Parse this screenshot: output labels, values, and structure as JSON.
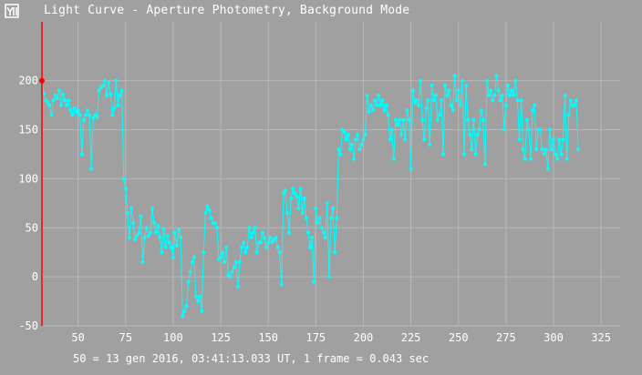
{
  "window": {
    "title": "Light Curve - Aperture Photometry, Background Mode",
    "icon": "app-icon"
  },
  "footer": {
    "caption": "50 = 13 gen 2016, 03:41:13.033 UT, 1 frame = 0.043 sec"
  },
  "colors": {
    "background": "#a0a0a0",
    "grid": "#b8b8b8",
    "series": "#00ffff",
    "y_axis": "#ff0000",
    "text": "#ffffff"
  },
  "chart_data": {
    "type": "line",
    "title": "",
    "xlabel": "",
    "ylabel": "",
    "xlim": [
      31,
      335
    ],
    "ylim": [
      -50,
      260
    ],
    "grid": true,
    "x_ticks": [
      50,
      75,
      100,
      125,
      150,
      175,
      200,
      225,
      250,
      275,
      300,
      325
    ],
    "y_ticks": [
      -50,
      0,
      50,
      100,
      150,
      200
    ],
    "x_tick_labels": [
      "50",
      "75",
      "100",
      "125",
      "150",
      "175",
      "200",
      "225",
      "250",
      "275",
      "300",
      "325"
    ],
    "y_tick_labels": [
      "-50",
      "0",
      "50",
      "100",
      "150",
      "200"
    ],
    "marker_on_axis": {
      "y": 200
    },
    "series": [
      {
        "x_start": 31,
        "x_step": 1,
        "values": [
          200,
          187,
          180,
          178,
          175,
          165,
          180,
          185,
          182,
          190,
          175,
          186,
          180,
          175,
          180,
          170,
          165,
          172,
          168,
          170,
          165,
          125,
          160,
          165,
          170,
          165,
          110,
          162,
          165,
          163,
          190,
          193,
          195,
          200,
          185,
          198,
          186,
          165,
          172,
          200,
          175,
          185,
          190,
          100,
          90,
          65,
          40,
          70,
          55,
          38,
          42,
          45,
          62,
          15,
          40,
          50,
          42,
          45,
          70,
          55,
          45,
          52,
          40,
          25,
          48,
          30,
          42,
          35,
          30,
          20,
          45,
          32,
          48,
          40,
          -40,
          -35,
          -30,
          -5,
          5,
          15,
          20,
          -20,
          -25,
          -20,
          -35,
          25,
          65,
          72,
          68,
          60,
          55,
          55,
          50,
          18,
          20,
          25,
          15,
          30,
          2,
          0,
          5,
          10,
          15,
          -10,
          15,
          30,
          35,
          25,
          30,
          50,
          40,
          45,
          50,
          25,
          35,
          35,
          45,
          40,
          30,
          35,
          40,
          35,
          38,
          40,
          30,
          25,
          -8,
          85,
          88,
          65,
          45,
          80,
          90,
          85,
          82,
          70,
          90,
          65,
          80,
          60,
          45,
          30,
          40,
          -5,
          70,
          55,
          60,
          50,
          45,
          40,
          75,
          0,
          60,
          70,
          25,
          60,
          130,
          125,
          150,
          148,
          140,
          145,
          130,
          135,
          120,
          140,
          145,
          130,
          135,
          140,
          145,
          185,
          168,
          175,
          170,
          180,
          175,
          185,
          175,
          180,
          170,
          175,
          165,
          140,
          150,
          120,
          160,
          155,
          160,
          145,
          160,
          140,
          170,
          160,
          110,
          190,
          178,
          180,
          175,
          200,
          160,
          140,
          172,
          180,
          135,
          195,
          180,
          185,
          160,
          165,
          180,
          125,
          195,
          185,
          190,
          175,
          170,
          205,
          180,
          190,
          175,
          200,
          125,
          195,
          160,
          145,
          130,
          160,
          125,
          145,
          150,
          170,
          160,
          115,
          200,
          185,
          190,
          180,
          185,
          205,
          190,
          180,
          185,
          150,
          175,
          195,
          185,
          190,
          185,
          200,
          180,
          140,
          180,
          130,
          120,
          160,
          150,
          120,
          170,
          175,
          130,
          150,
          150,
          130,
          125,
          130,
          110,
          150,
          130,
          140,
          125,
          120,
          140,
          125,
          140,
          185,
          120,
          165,
          180,
          175,
          175,
          180,
          130
        ]
      }
    ]
  }
}
